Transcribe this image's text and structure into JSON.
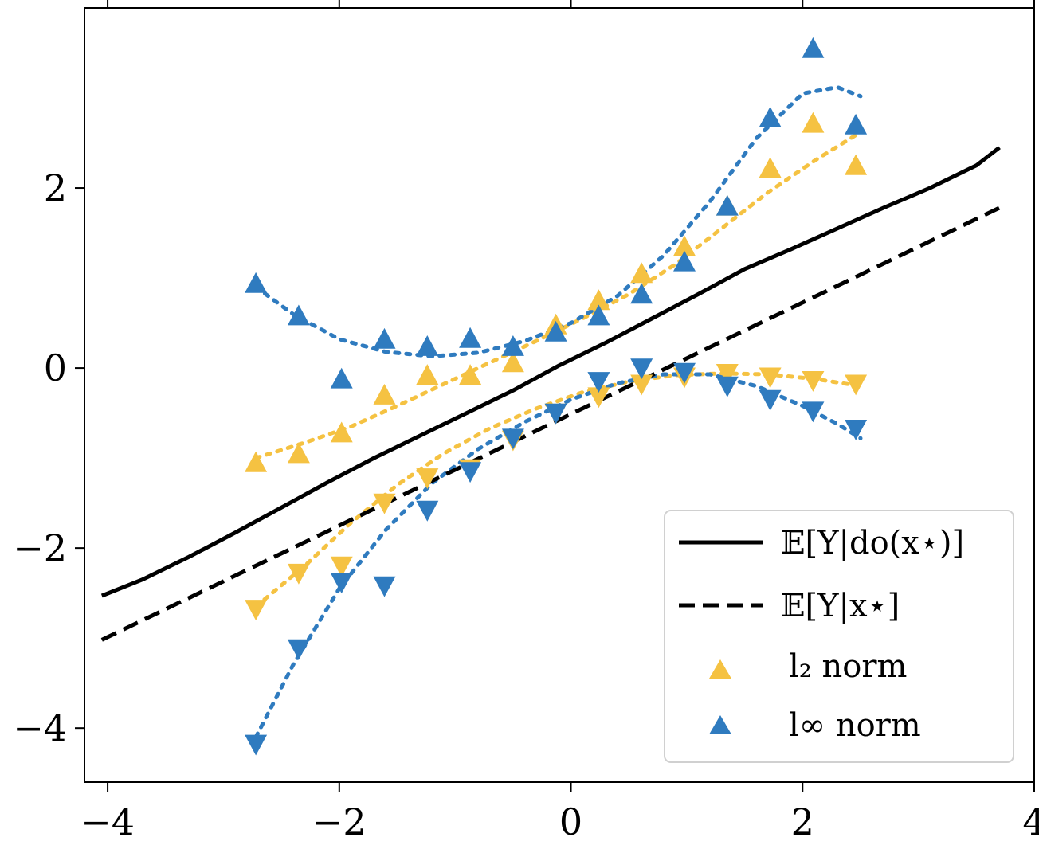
{
  "chart_data": {
    "type": "scatter",
    "title": "",
    "xlabel": "",
    "ylabel": "",
    "xlim": [
      -4.2,
      4.0
    ],
    "ylim": [
      -4.6,
      4.0
    ],
    "xticks": [
      -4,
      -2,
      0,
      2,
      4
    ],
    "yticks": [
      -4,
      -2,
      0,
      2
    ],
    "tick_labels": {
      "x": [
        "−4",
        "−2",
        "0",
        "2",
        "4"
      ],
      "y": [
        "−4",
        "−2",
        "0",
        "2"
      ]
    },
    "grid": false,
    "legend_position": "bottom-right",
    "colors": {
      "l2": "#f5c242",
      "linf": "#2f7bbf",
      "line": "#000000"
    },
    "lines": [
      {
        "name": "E[Y|do(x*)]",
        "style": "solid",
        "x": [
          -4.05,
          -3.7,
          -3.3,
          -2.9,
          -2.5,
          -2.1,
          -1.7,
          -1.3,
          -0.9,
          -0.5,
          -0.1,
          0.3,
          0.7,
          1.1,
          1.5,
          1.9,
          2.3,
          2.7,
          3.1,
          3.5,
          3.7
        ],
        "y": [
          -2.53,
          -2.35,
          -2.1,
          -1.83,
          -1.55,
          -1.27,
          -1.0,
          -0.75,
          -0.5,
          -0.25,
          0.03,
          0.28,
          0.55,
          0.82,
          1.1,
          1.32,
          1.55,
          1.78,
          2.0,
          2.25,
          2.45
        ]
      },
      {
        "name": "E[Y|x*]",
        "style": "dashed",
        "x": [
          -4.05,
          3.7
        ],
        "y": [
          -3.02,
          1.78
        ]
      }
    ],
    "markers": [
      {
        "name": "l2 upper",
        "legend": "l2",
        "marker": "triangle-up",
        "color": "#f5c242",
        "x": [
          -2.72,
          -2.35,
          -1.98,
          -1.61,
          -1.24,
          -0.87,
          -0.5,
          -0.13,
          0.24,
          0.61,
          0.98,
          1.35,
          1.72,
          2.09,
          2.46
        ],
        "y": [
          -1.05,
          -0.95,
          -0.72,
          -0.3,
          -0.08,
          -0.08,
          0.06,
          0.48,
          0.75,
          1.05,
          1.35,
          1.8,
          2.22,
          2.72,
          2.25
        ]
      },
      {
        "name": "l2 lower",
        "legend": "l2",
        "marker": "triangle-down",
        "color": "#f5c242",
        "x": [
          -2.72,
          -2.35,
          -1.98,
          -1.61,
          -1.24,
          -0.87,
          -0.5,
          -0.13,
          0.24,
          0.61,
          0.98,
          1.35,
          1.72,
          2.09,
          2.46
        ],
        "y": [
          -2.68,
          -2.28,
          -2.2,
          -1.5,
          -1.22,
          -1.12,
          -0.8,
          -0.5,
          -0.32,
          -0.18,
          -0.1,
          -0.06,
          -0.1,
          -0.14,
          -0.18
        ]
      },
      {
        "name": "linf upper",
        "legend": "linf",
        "marker": "triangle-up",
        "color": "#2f7bbf",
        "x": [
          -2.72,
          -2.35,
          -1.98,
          -1.61,
          -1.24,
          -0.87,
          -0.5,
          -0.13,
          0.24,
          0.61,
          0.98,
          1.35,
          1.72,
          2.09,
          2.46
        ],
        "y": [
          0.94,
          0.58,
          -0.12,
          0.32,
          0.24,
          0.33,
          0.24,
          0.4,
          0.58,
          0.82,
          1.18,
          1.8,
          2.78,
          3.55,
          2.7
        ]
      },
      {
        "name": "linf lower",
        "legend": "linf",
        "marker": "triangle-down",
        "color": "#2f7bbf",
        "x": [
          -2.72,
          -2.35,
          -1.98,
          -1.61,
          -1.24,
          -0.87,
          -0.5,
          -0.13,
          0.24,
          0.61,
          0.98,
          1.35,
          1.72,
          2.09,
          2.46
        ],
        "y": [
          -4.18,
          -3.12,
          -2.38,
          -2.42,
          -1.58,
          -1.15,
          -0.78,
          -0.5,
          -0.15,
          0.0,
          -0.05,
          -0.2,
          -0.35,
          -0.48,
          -0.68
        ]
      }
    ],
    "fits": [
      {
        "color": "#f5c242",
        "x": [
          -2.72,
          -2.3,
          -1.9,
          -1.5,
          -1.1,
          -0.7,
          -0.3,
          0.1,
          0.5,
          0.9,
          1.3,
          1.7,
          2.1,
          2.5
        ],
        "y": [
          -1.0,
          -0.83,
          -0.65,
          -0.42,
          -0.18,
          0.06,
          0.3,
          0.55,
          0.82,
          1.15,
          1.55,
          1.95,
          2.3,
          2.62
        ]
      },
      {
        "color": "#f5c242",
        "x": [
          -2.72,
          -2.3,
          -1.9,
          -1.5,
          -1.1,
          -0.7,
          -0.3,
          0.1,
          0.5,
          0.9,
          1.3,
          1.7,
          2.1,
          2.5
        ],
        "y": [
          -2.65,
          -2.2,
          -1.72,
          -1.3,
          -0.95,
          -0.67,
          -0.45,
          -0.27,
          -0.15,
          -0.08,
          -0.06,
          -0.07,
          -0.12,
          -0.2
        ]
      },
      {
        "color": "#2f7bbf",
        "x": [
          -2.72,
          -2.4,
          -2.0,
          -1.6,
          -1.2,
          -0.8,
          -0.4,
          0.0,
          0.4,
          0.8,
          1.2,
          1.6,
          2.0,
          2.3,
          2.5
        ],
        "y": [
          0.9,
          0.6,
          0.32,
          0.18,
          0.13,
          0.17,
          0.3,
          0.5,
          0.8,
          1.25,
          1.85,
          2.55,
          3.05,
          3.12,
          3.02
        ]
      },
      {
        "color": "#2f7bbf",
        "x": [
          -2.72,
          -2.4,
          -2.0,
          -1.6,
          -1.2,
          -0.8,
          -0.4,
          0.0,
          0.4,
          0.8,
          1.2,
          1.6,
          2.0,
          2.3,
          2.5
        ],
        "y": [
          -4.1,
          -3.3,
          -2.45,
          -1.8,
          -1.28,
          -0.9,
          -0.6,
          -0.35,
          -0.17,
          -0.07,
          -0.07,
          -0.2,
          -0.42,
          -0.62,
          -0.78
        ]
      }
    ],
    "legend": [
      {
        "key": "solid",
        "label": "𝔼[Y|do(x⋆)]"
      },
      {
        "key": "dashed",
        "label": "𝔼[Y|x⋆]"
      },
      {
        "key": "l2",
        "label": "l₂ norm"
      },
      {
        "key": "linf",
        "label": "l∞ norm"
      }
    ]
  }
}
